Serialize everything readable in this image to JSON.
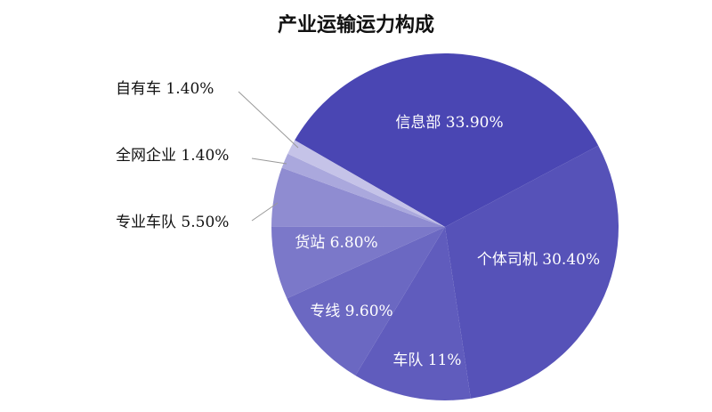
{
  "chart_data": {
    "type": "pie",
    "title": "产业运输运力构成",
    "slices": [
      {
        "label": "信息部",
        "value": 33.9,
        "display": "33.90%",
        "color": "#4a46b3"
      },
      {
        "label": "个体司机",
        "value": 30.4,
        "display": "30.40%",
        "color": "#5652b8"
      },
      {
        "label": "车队",
        "value": 11,
        "display": "11%",
        "color": "#605cbd"
      },
      {
        "label": "专线",
        "value": 9.6,
        "display": "9.60%",
        "color": "#6b68c2"
      },
      {
        "label": "货站",
        "value": 6.8,
        "display": "6.80%",
        "color": "#7b78c9"
      },
      {
        "label": "专业车队",
        "value": 5.5,
        "display": "5.50%",
        "color": "#8f8cd1"
      },
      {
        "label": "全网企业",
        "value": 1.4,
        "display": "1.40%",
        "color": "#aaa8dd"
      },
      {
        "label": "自有车",
        "value": 1.4,
        "display": "1.40%",
        "color": "#c5c3e8"
      }
    ]
  }
}
